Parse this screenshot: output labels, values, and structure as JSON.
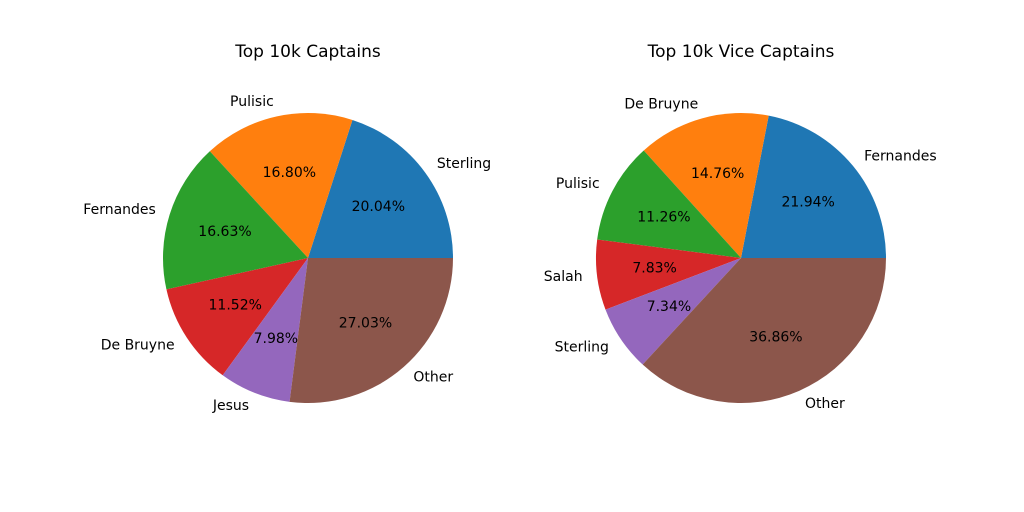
{
  "chart_data": [
    {
      "type": "pie",
      "title": "Top 10k Captains",
      "labels": [
        "Sterling",
        "Pulisic",
        "Fernandes",
        "De Bruyne",
        "Jesus",
        "Other"
      ],
      "values": [
        20.04,
        16.8,
        16.63,
        11.52,
        7.98,
        27.03
      ],
      "value_labels": [
        "20.04%",
        "16.80%",
        "16.63%",
        "11.52%",
        "7.98%",
        "27.03%"
      ],
      "colors": [
        "#1f77b4",
        "#ff7f0e",
        "#2ca02c",
        "#d62728",
        "#9467bd",
        "#8c564b"
      ]
    },
    {
      "type": "pie",
      "title": "Top 10k Vice Captains",
      "labels": [
        "Fernandes",
        "De Bruyne",
        "Pulisic",
        "Salah",
        "Sterling",
        "Other"
      ],
      "values": [
        21.94,
        14.76,
        11.26,
        7.83,
        7.34,
        36.86
      ],
      "value_labels": [
        "21.94%",
        "14.76%",
        "11.26%",
        "7.83%",
        "7.34%",
        "36.86%"
      ],
      "colors": [
        "#1f77b4",
        "#ff7f0e",
        "#2ca02c",
        "#d62728",
        "#9467bd",
        "#8c564b"
      ]
    }
  ]
}
